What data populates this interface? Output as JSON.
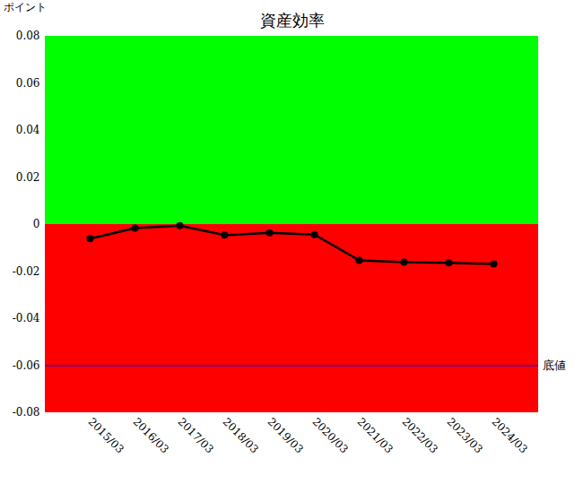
{
  "chart_data": {
    "type": "line",
    "title": "資産効率",
    "y_label": "ポイント",
    "categories": [
      "2015/03",
      "2016/03",
      "2017/03",
      "2018/03",
      "2019/03",
      "2020/03",
      "2021/03",
      "2022/03",
      "2023/03",
      "2024/03"
    ],
    "values": [
      -0.006,
      -0.0015,
      -0.0005,
      -0.0045,
      -0.0035,
      -0.0043,
      -0.0152,
      -0.016,
      -0.0163,
      -0.0168
    ],
    "color": "#000000",
    "marker": "circle",
    "ylim": [
      -0.08,
      0.08
    ],
    "yticks": [
      -0.08,
      -0.06,
      -0.04,
      -0.02,
      0,
      0.02,
      0.04,
      0.06,
      0.08
    ],
    "grid": false,
    "bands": [
      {
        "from": 0,
        "to": 0.08,
        "color": "#00ff00"
      },
      {
        "from": -0.08,
        "to": 0,
        "color": "#ff0000"
      }
    ],
    "reference_lines": [
      {
        "y": -0.06,
        "label": "底値",
        "color": "#0000ff"
      }
    ]
  }
}
